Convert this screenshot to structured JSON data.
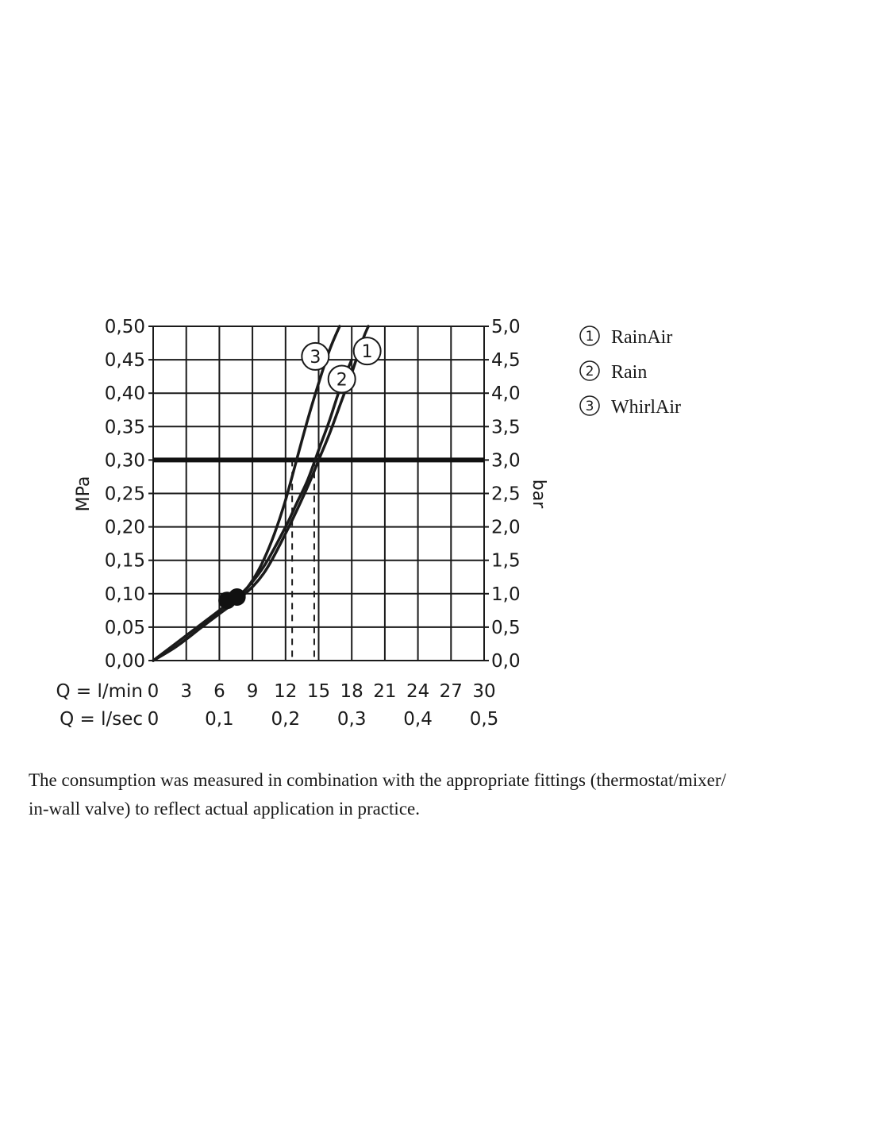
{
  "chart_data": {
    "type": "line",
    "y_left_label": "MPa",
    "y_right_label": "bar",
    "y_left_ticks": [
      "0,00",
      "0,05",
      "0,10",
      "0,15",
      "0,20",
      "0,25",
      "0,30",
      "0,35",
      "0,40",
      "0,45",
      "0,50"
    ],
    "y_right_ticks": [
      "0,0",
      "0,5",
      "1,0",
      "1,5",
      "2,0",
      "2,5",
      "3,0",
      "3,5",
      "4,0",
      "4,5",
      "5,0"
    ],
    "x_row1_label": "Q = l/min",
    "x_row1_ticks": [
      "0",
      "3",
      "6",
      "9",
      "12",
      "15",
      "18",
      "21",
      "24",
      "27",
      "30"
    ],
    "x_row2_label": "Q = l/sec",
    "x_row2_ticks": [
      "0",
      "0,1",
      "0,2",
      "0,3",
      "0,4",
      "0,5"
    ],
    "xlim": [
      0,
      30
    ],
    "ylim": [
      0,
      0.5
    ],
    "grid": true,
    "reference_line_mpa": 0.3,
    "operating_points_lmin": [
      12.6,
      14.6
    ],
    "marker_points": [
      {
        "x": 6.7,
        "y": 0.09
      },
      {
        "x": 7.6,
        "y": 0.095
      }
    ],
    "series": [
      {
        "id": "1",
        "name": "RainAir",
        "color": "#1a1a1a",
        "x": [
          0,
          2,
          4,
          6,
          8,
          10,
          12,
          14,
          15,
          16,
          17,
          18,
          19,
          19.5
        ],
        "y": [
          0,
          0.02,
          0.045,
          0.07,
          0.095,
          0.13,
          0.19,
          0.26,
          0.3,
          0.34,
          0.385,
          0.43,
          0.48,
          0.5
        ]
      },
      {
        "id": "2",
        "name": "Rain",
        "color": "#1a1a1a",
        "x": [
          0,
          2,
          4,
          6,
          8,
          10,
          12,
          13,
          14,
          15,
          16,
          17,
          18
        ],
        "y": [
          0,
          0.025,
          0.05,
          0.075,
          0.1,
          0.14,
          0.2,
          0.235,
          0.27,
          0.315,
          0.36,
          0.41,
          0.45
        ]
      },
      {
        "id": "3",
        "name": "WhirlAir",
        "color": "#1a1a1a",
        "x": [
          0,
          2,
          4,
          6,
          8,
          9,
          10,
          11,
          12,
          13,
          14,
          15,
          16,
          16.9
        ],
        "y": [
          0,
          0.02,
          0.045,
          0.075,
          0.1,
          0.12,
          0.15,
          0.19,
          0.24,
          0.3,
          0.36,
          0.415,
          0.465,
          0.5
        ]
      }
    ]
  },
  "legend": [
    {
      "mark": "1",
      "label": "RainAir"
    },
    {
      "mark": "2",
      "label": "Rain"
    },
    {
      "mark": "3",
      "label": "WhirlAir"
    }
  ],
  "footnote": {
    "line1": "The consumption was measured in combination with the appropriate fittings (thermostat/mixer/",
    "line2": "in-wall valve) to reflect actual application in practice."
  }
}
